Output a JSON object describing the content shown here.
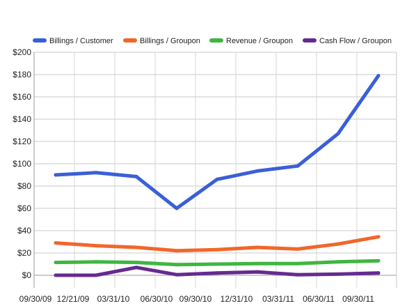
{
  "chart_data": {
    "type": "line",
    "title": "",
    "xlabel": "",
    "ylabel": "",
    "ylim": [
      0,
      200
    ],
    "y_ticks": [
      "$0",
      "$20",
      "$40",
      "$60",
      "$80",
      "$100",
      "$120",
      "$140",
      "$160",
      "$180",
      "$200"
    ],
    "x_tick_labels": [
      "09/30/09",
      "12/21/09",
      "03/31/10",
      "06/30/10",
      "09/30/10",
      "12/31/10",
      "03/31/11",
      "06/30/11",
      "09/30/11"
    ],
    "grid": "horizontal",
    "legend_position": "top",
    "series": [
      {
        "name": "Billings / Customer",
        "color": "#3a5fd8",
        "values": [
          90,
          92,
          88.5,
          60,
          86,
          93.5,
          98,
          127,
          179
        ]
      },
      {
        "name": "Billings / Groupon",
        "color": "#f2662a",
        "values": [
          29,
          26.5,
          25,
          22,
          23,
          25,
          23.5,
          28,
          34.5
        ]
      },
      {
        "name": "Revenue / Groupon",
        "color": "#3fb640",
        "values": [
          11.5,
          12,
          11.5,
          9.5,
          10,
          10.5,
          10.5,
          12,
          13
        ]
      },
      {
        "name": "Cash Flow / Groupon",
        "color": "#652a90",
        "values": [
          0,
          0,
          7,
          0.5,
          2,
          3,
          0.5,
          1,
          2
        ]
      }
    ]
  }
}
